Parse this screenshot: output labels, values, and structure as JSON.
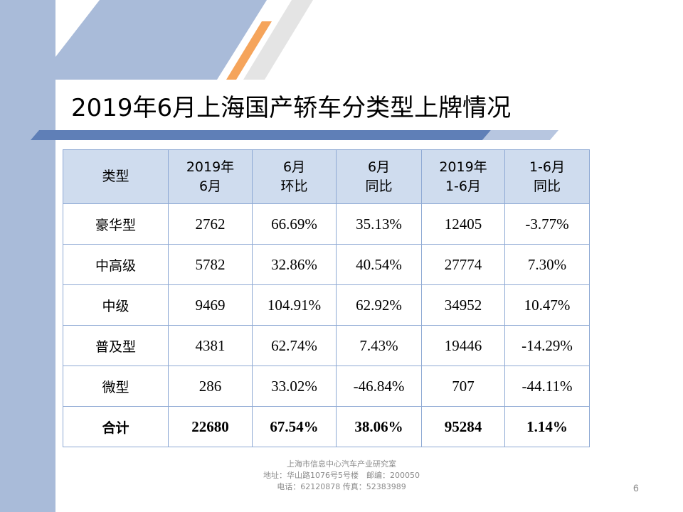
{
  "title": "2019年6月上海国产轿车分类型上牌情况",
  "colors": {
    "accent_orange": "#f5a45b",
    "band_blue": "#a9bbd9",
    "header_fill": "#cfdcee",
    "grid_line": "#8ea9d4"
  },
  "table": {
    "headers": [
      {
        "line1": "类型",
        "line2": ""
      },
      {
        "line1": "2019年",
        "line2": "6月"
      },
      {
        "line1": "6月",
        "line2": "环比"
      },
      {
        "line1": "6月",
        "line2": "同比"
      },
      {
        "line1": "2019年",
        "line2": "1-6月"
      },
      {
        "line1": "1-6月",
        "line2": "同比"
      }
    ],
    "rows": [
      {
        "type": "豪华型",
        "jun": "2762",
        "mom": "66.69%",
        "yoy": "35.13%",
        "ytd": "12405",
        "ytd_yoy": "-3.77%"
      },
      {
        "type": "中高级",
        "jun": "5782",
        "mom": "32.86%",
        "yoy": "40.54%",
        "ytd": "27774",
        "ytd_yoy": "7.30%"
      },
      {
        "type": "中级",
        "jun": "9469",
        "mom": "104.91%",
        "yoy": "62.92%",
        "ytd": "34952",
        "ytd_yoy": "10.47%"
      },
      {
        "type": "普及型",
        "jun": "4381",
        "mom": "62.74%",
        "yoy": "7.43%",
        "ytd": "19446",
        "ytd_yoy": "-14.29%"
      },
      {
        "type": "微型",
        "jun": "286",
        "mom": "33.02%",
        "yoy": "-46.84%",
        "ytd": "707",
        "ytd_yoy": "-44.11%"
      }
    ],
    "total": {
      "type": "合计",
      "jun": "22680",
      "mom": "67.54%",
      "yoy": "38.06%",
      "ytd": "95284",
      "ytd_yoy": "1.14%"
    }
  },
  "footer": {
    "org": "上海市信息中心汽车产业研究室",
    "address": "地址：华山路1076号5号楼　邮编：200050",
    "phone": "电话：62120878  传真：52383989"
  },
  "page_number": "6"
}
